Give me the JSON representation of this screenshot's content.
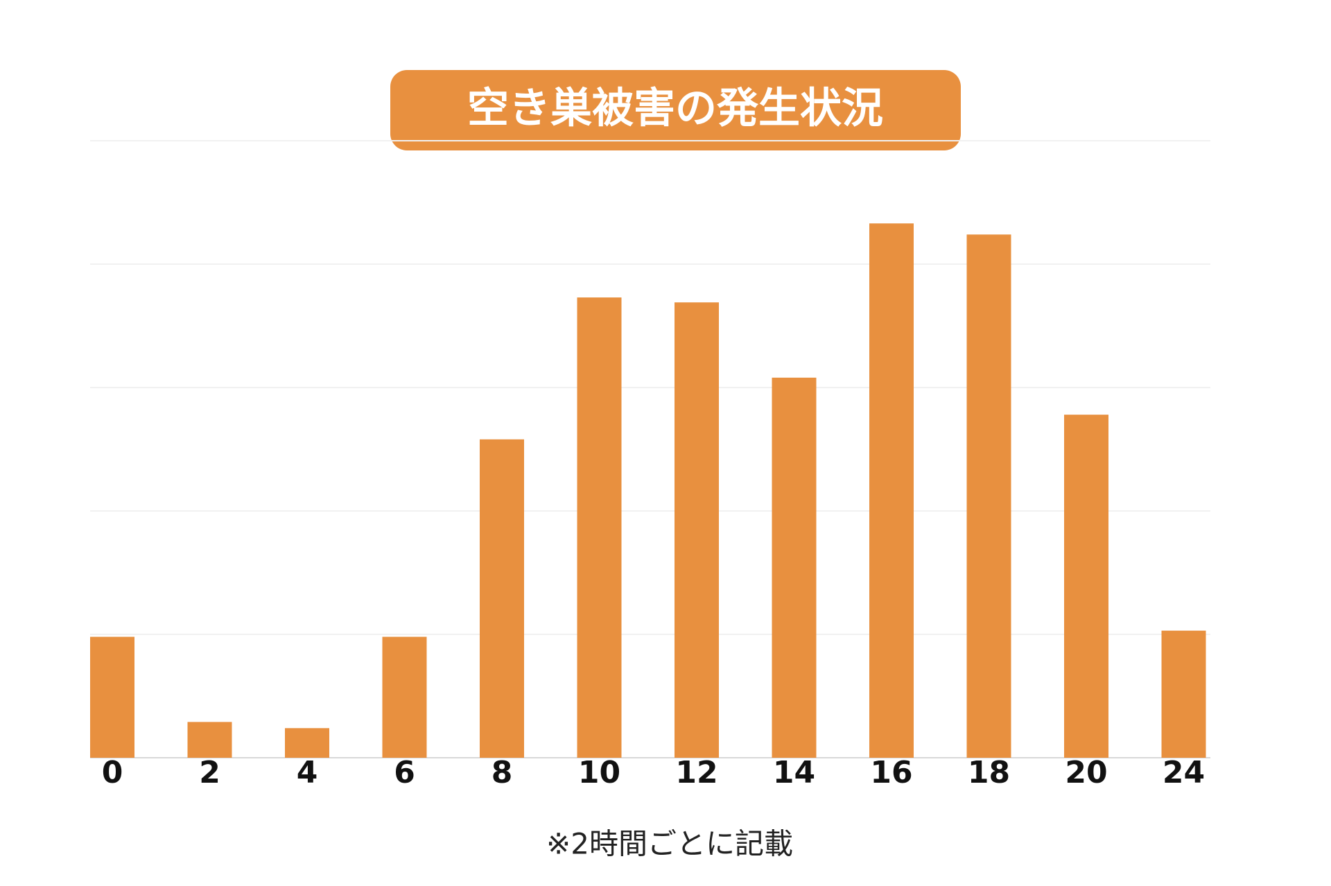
{
  "chart_data": {
    "type": "bar",
    "title": "空き巣被害の発生状況",
    "categories": [
      "0",
      "2",
      "4",
      "6",
      "8",
      "10",
      "12",
      "14",
      "16",
      "18",
      "20",
      "24"
    ],
    "values": [
      0.98,
      0.29,
      0.24,
      0.98,
      2.58,
      3.73,
      3.69,
      3.08,
      4.33,
      4.24,
      2.78,
      1.03
    ],
    "color": "#e8903f",
    "ylim": [
      0,
      5
    ],
    "yticks": [
      0,
      1,
      2,
      3,
      4,
      5
    ],
    "grid": true,
    "note": "※2時間ごとに記載"
  }
}
